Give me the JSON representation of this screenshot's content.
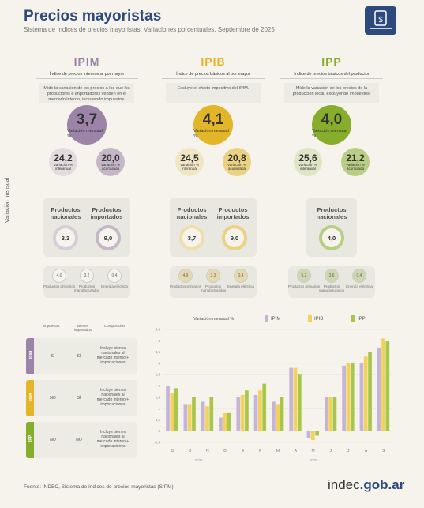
{
  "header": {
    "title": "Precios mayoristas",
    "subtitle": "Sistema de índices de precios mayoristas. Variaciones porcentuales. Septiembre de 2025"
  },
  "columns": [
    {
      "key": "ipim",
      "title": "IPIM",
      "color": "#9b84a8",
      "sub": "Índice de precios internos al por mayor",
      "desc": "Mide la variación de los precios a los que los productores e importadores venden en el mercado interno, incluyendo impuestos.",
      "monthly": "3,7",
      "monthly_label": "Variación mensual %",
      "interanual": "24,2",
      "interanual_label": "Variación % interanual",
      "acumulada": "20,0",
      "acumulada_label": "Variación % acumulada",
      "nac": "3,3",
      "imp": "9,0",
      "primarios": "4,0",
      "manufacturados": "3,2",
      "energia": "0,4"
    },
    {
      "key": "ipib",
      "title": "IPIB",
      "color": "#e3b528",
      "sub": "Índice de precios básicos al por mayor",
      "desc": "Excluye el efecto impositivo del IPIM.",
      "monthly": "4,1",
      "monthly_label": "Variación mensual %",
      "interanual": "24,5",
      "interanual_label": "Variación % interanual",
      "acumulada": "20,8",
      "acumulada_label": "Variación % acumulada",
      "nac": "3,7",
      "imp": "9,0",
      "primarios": "4,9",
      "manufacturados": "3,3",
      "energia": "0,4"
    },
    {
      "key": "ipp",
      "title": "IPP",
      "color": "#86ae2c",
      "sub": "Índice de precios básicos del productor",
      "desc": "Mide la variación de los precios de la producción local, excluyendo impuestos.",
      "monthly": "4,0",
      "monthly_label": "Variación mensual %",
      "interanual": "25,6",
      "interanual_label": "Variación % interanual",
      "acumulada": "21,2",
      "acumulada_label": "Variación % acumulada",
      "nac": "4,0",
      "primarios": "5,2",
      "manufacturados": "3,6",
      "energia": "0,4"
    }
  ],
  "labels": {
    "nacionales": "Productos nacionales",
    "importados": "Productos importados",
    "primarios": "Productos primarios",
    "manufacturados": "Productos manufacturados",
    "energia": "Energía eléctrica",
    "vertical": "Variación mensual"
  },
  "table": {
    "headers": [
      "Impuestos",
      "Bienes importados",
      "Composición"
    ],
    "rows": [
      {
        "tag": "IPIM",
        "color": "#9b84a8",
        "impuestos": "SÍ",
        "importados": "SÍ",
        "composicion": "Incluye bienes nacionales al mercado interno + importaciones"
      },
      {
        "tag": "IPIB",
        "color": "#e3b528",
        "impuestos": "NO",
        "importados": "SÍ",
        "composicion": "Incluye bienes nacionales al mercado interno + importaciones"
      },
      {
        "tag": "IPP",
        "color": "#86ae2c",
        "impuestos": "NO",
        "importados": "NO",
        "composicion": "Incluye bienes nacionales al mercado interno + exportaciones"
      }
    ]
  },
  "chart_data": {
    "type": "bar",
    "title": "",
    "legend_title": "Variación mensual %",
    "categories": [
      "S",
      "O",
      "N",
      "D",
      "E",
      "F",
      "M",
      "A",
      "M",
      "J",
      "J",
      "A",
      "S"
    ],
    "years": [
      {
        "label": "2024",
        "from": 0,
        "to": 3
      },
      {
        "label": "2025",
        "from": 4,
        "to": 12
      }
    ],
    "series": [
      {
        "name": "IPIM",
        "color": "#c5b4d6",
        "values": [
          2.0,
          1.2,
          1.3,
          0.6,
          1.5,
          1.6,
          1.3,
          2.8,
          -0.3,
          1.5,
          2.9,
          3.0,
          3.7
        ]
      },
      {
        "name": "IPIB",
        "color": "#f3d25c",
        "values": [
          1.7,
          1.2,
          1.1,
          0.8,
          1.6,
          1.8,
          1.2,
          2.8,
          -0.4,
          1.5,
          3.0,
          3.3,
          4.1
        ]
      },
      {
        "name": "IPP",
        "color": "#a8c64b",
        "values": [
          1.9,
          1.5,
          1.5,
          0.8,
          1.8,
          2.1,
          1.5,
          2.5,
          -0.2,
          1.5,
          3.0,
          3.5,
          4.0
        ]
      }
    ],
    "ylim": [
      -0.5,
      4.5
    ],
    "yticks": [
      "-0,5",
      "0",
      "0,5",
      "1",
      "1,5",
      "2",
      "2,5",
      "3",
      "3,5",
      "4",
      "4,5"
    ]
  },
  "footer": {
    "source": "Fuente: INDEC, Sistema de índices de precios mayoristas (SIPM).",
    "brand_a": "indec",
    "brand_b": ".gob.ar"
  }
}
